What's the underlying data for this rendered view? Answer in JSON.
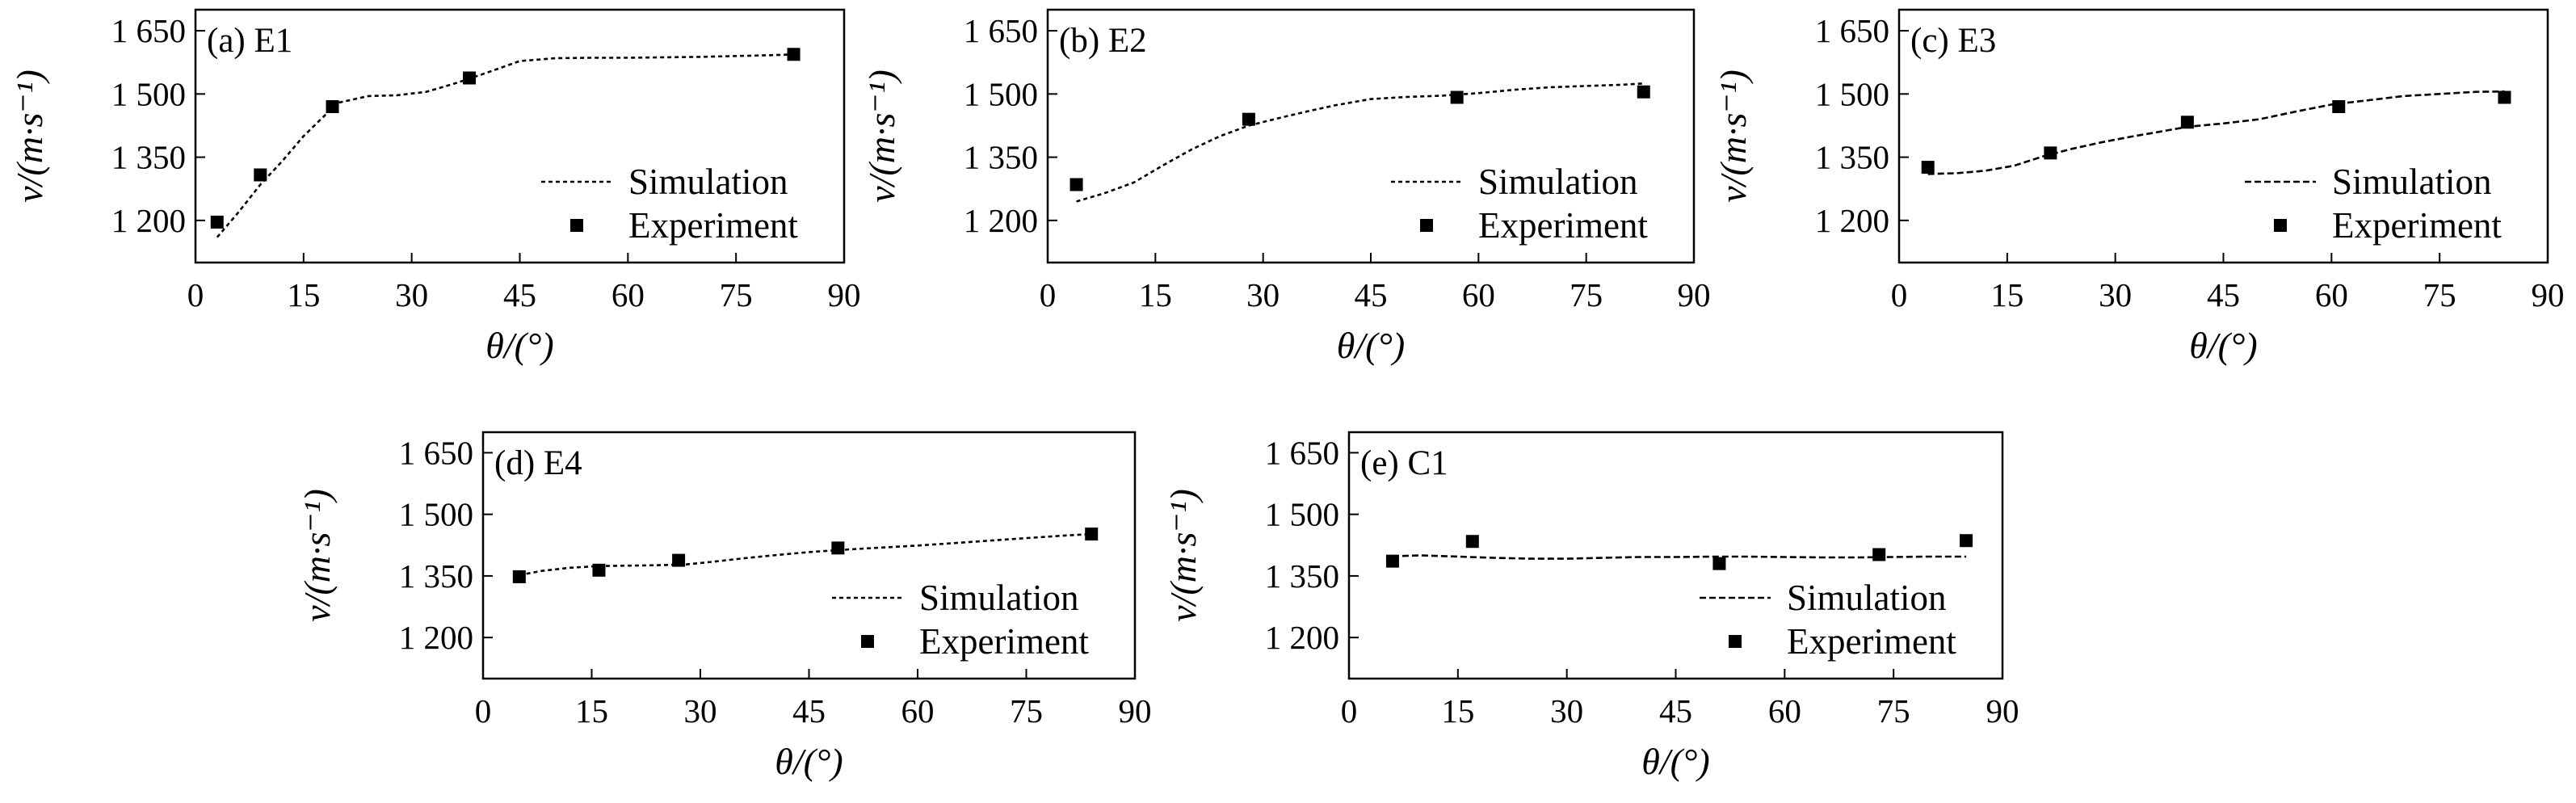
{
  "chart_data": [
    {
      "type": "line",
      "title": "(a) E1",
      "xlabel": "θ/(°)",
      "ylabel": "v/(m·s⁻¹)",
      "xlim": [
        0,
        90
      ],
      "ylim": [
        1100,
        1700
      ],
      "xticks": [
        0,
        15,
        30,
        45,
        60,
        75,
        90
      ],
      "xtick_labels": [
        "0",
        "15",
        "30",
        "45",
        "60",
        "75",
        "90"
      ],
      "yticks": [
        1200,
        1350,
        1500,
        1650
      ],
      "ytick_labels": [
        "1 200",
        "1 350",
        "1 500",
        "1 650"
      ],
      "legend_position": "lower-right",
      "series": [
        {
          "name": "Simulation",
          "style": "dotted-line",
          "x": [
            3,
            6,
            9,
            12,
            15,
            18,
            20,
            24,
            28,
            32,
            36,
            40,
            45,
            50,
            55,
            60,
            70,
            80,
            83
          ],
          "y": [
            1160,
            1220,
            1285,
            1340,
            1400,
            1450,
            1480,
            1495,
            1497,
            1505,
            1525,
            1548,
            1578,
            1585,
            1586,
            1586,
            1588,
            1592,
            1594
          ]
        },
        {
          "name": "Experiment",
          "style": "square-marker",
          "x": [
            3,
            9,
            19,
            38,
            83
          ],
          "y": [
            1196,
            1308,
            1470,
            1538,
            1594
          ]
        }
      ]
    },
    {
      "type": "line",
      "title": "(b) E2",
      "xlabel": "θ/(°)",
      "ylabel": "v/(m·s⁻¹)",
      "xlim": [
        0,
        90
      ],
      "ylim": [
        1100,
        1700
      ],
      "xticks": [
        0,
        15,
        30,
        45,
        60,
        75,
        90
      ],
      "xtick_labels": [
        "0",
        "15",
        "30",
        "45",
        "60",
        "75",
        "90"
      ],
      "yticks": [
        1200,
        1350,
        1500,
        1650
      ],
      "ytick_labels": [
        "1 200",
        "1 350",
        "1 500",
        "1 650"
      ],
      "legend_position": "lower-right",
      "series": [
        {
          "name": "Simulation",
          "style": "dotted-line",
          "x": [
            4,
            8,
            12,
            16,
            20,
            24,
            28,
            32,
            36,
            40,
            45,
            50,
            55,
            60,
            65,
            70,
            75,
            80,
            83
          ],
          "y": [
            1245,
            1265,
            1290,
            1330,
            1368,
            1400,
            1425,
            1442,
            1458,
            1473,
            1488,
            1493,
            1496,
            1502,
            1510,
            1516,
            1519,
            1522,
            1525
          ]
        },
        {
          "name": "Experiment",
          "style": "square-marker",
          "x": [
            4,
            28,
            57,
            83
          ],
          "y": [
            1285,
            1440,
            1492,
            1505
          ]
        }
      ]
    },
    {
      "type": "line",
      "title": "(c) E3",
      "xlabel": "θ/(°)",
      "ylabel": "v/(m·s⁻¹)",
      "xlim": [
        0,
        90
      ],
      "ylim": [
        1100,
        1700
      ],
      "xticks": [
        0,
        15,
        30,
        45,
        60,
        75,
        90
      ],
      "xtick_labels": [
        "0",
        "15",
        "30",
        "45",
        "60",
        "75",
        "90"
      ],
      "yticks": [
        1200,
        1350,
        1500,
        1650
      ],
      "ytick_labels": [
        "1 200",
        "1 350",
        "1 500",
        "1 650"
      ],
      "legend_position": "lower-right",
      "series": [
        {
          "name": "Simulation",
          "style": "dashed-line",
          "x": [
            4,
            8,
            12,
            16,
            20,
            24,
            28,
            32,
            36,
            40,
            45,
            50,
            55,
            60,
            65,
            70,
            75,
            80,
            84
          ],
          "y": [
            1310,
            1312,
            1318,
            1330,
            1352,
            1370,
            1385,
            1398,
            1410,
            1422,
            1430,
            1440,
            1458,
            1475,
            1485,
            1495,
            1500,
            1505,
            1506
          ]
        },
        {
          "name": "Experiment",
          "style": "square-marker",
          "x": [
            4,
            21,
            40,
            61,
            84
          ],
          "y": [
            1326,
            1360,
            1433,
            1470,
            1492
          ]
        }
      ]
    },
    {
      "type": "line",
      "title": "(d) E4",
      "xlabel": "θ/(°)",
      "ylabel": "v/(m·s⁻¹)",
      "xlim": [
        0,
        90
      ],
      "ylim": [
        1100,
        1700
      ],
      "xticks": [
        0,
        15,
        30,
        45,
        60,
        75,
        90
      ],
      "xtick_labels": [
        "0",
        "15",
        "30",
        "45",
        "60",
        "75",
        "90"
      ],
      "yticks": [
        1200,
        1350,
        1500,
        1650
      ],
      "ytick_labels": [
        "1 200",
        "1 350",
        "1 500",
        "1 650"
      ],
      "legend_position": "lower-right",
      "series": [
        {
          "name": "Simulation",
          "style": "dotted-line",
          "x": [
            5,
            8,
            12,
            16,
            20,
            24,
            28,
            32,
            36,
            40,
            45,
            50,
            55,
            60,
            65,
            70,
            75,
            80,
            84
          ],
          "y": [
            1352,
            1362,
            1370,
            1374,
            1375,
            1376,
            1378,
            1385,
            1393,
            1400,
            1408,
            1414,
            1419,
            1424,
            1430,
            1436,
            1442,
            1448,
            1452
          ]
        },
        {
          "name": "Experiment",
          "style": "square-marker",
          "x": [
            5,
            16,
            27,
            49,
            84
          ],
          "y": [
            1348,
            1364,
            1388,
            1418,
            1452
          ]
        }
      ]
    },
    {
      "type": "line",
      "title": "(e) C1",
      "xlabel": "θ/(°)",
      "ylabel": "v/(m·s⁻¹)",
      "xlim": [
        0,
        90
      ],
      "ylim": [
        1100,
        1700
      ],
      "xticks": [
        0,
        15,
        30,
        45,
        60,
        75,
        90
      ],
      "xtick_labels": [
        "0",
        "15",
        "30",
        "45",
        "60",
        "75",
        "90"
      ],
      "yticks": [
        1200,
        1350,
        1500,
        1650
      ],
      "ytick_labels": [
        "1 200",
        "1 350",
        "1 500",
        "1 650"
      ],
      "legend_position": "lower-right",
      "series": [
        {
          "name": "Simulation",
          "style": "dashed-line",
          "x": [
            6,
            10,
            15,
            20,
            25,
            30,
            35,
            40,
            45,
            50,
            55,
            60,
            65,
            70,
            75,
            80,
            85
          ],
          "y": [
            1398,
            1400,
            1397,
            1394,
            1392,
            1392,
            1394,
            1396,
            1396,
            1397,
            1397,
            1396,
            1395,
            1395,
            1396,
            1397,
            1397
          ]
        },
        {
          "name": "Experiment",
          "style": "square-marker",
          "x": [
            6,
            17,
            51,
            73,
            85
          ],
          "y": [
            1386,
            1434,
            1380,
            1402,
            1436
          ]
        }
      ]
    }
  ]
}
